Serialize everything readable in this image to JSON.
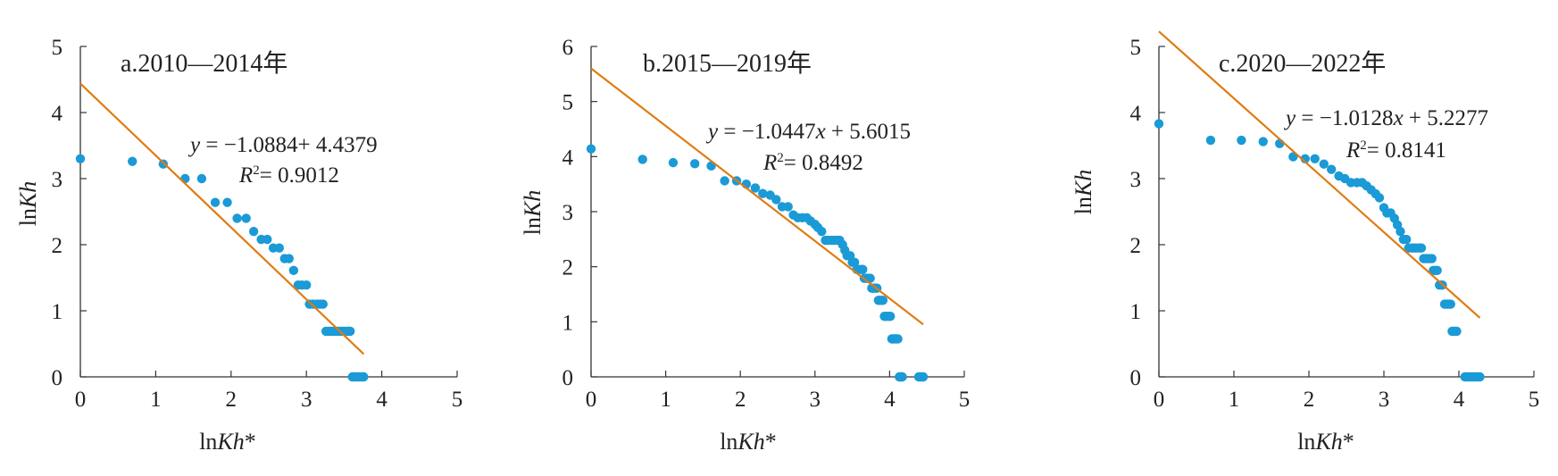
{
  "chart_data": [
    {
      "type": "scatter",
      "title": "a.2010—2014年",
      "xlabel": "lnKh*",
      "ylabel": "lnKh",
      "xlim": [
        0,
        5
      ],
      "ylim": [
        0,
        5
      ],
      "xticks": [
        "0",
        "1",
        "2",
        "3",
        "4",
        "5"
      ],
      "yticks": [
        "0",
        "1",
        "2",
        "3",
        "4",
        "5"
      ],
      "grid": false,
      "equation": "y = −1.0884+ 4.4379",
      "r2": "R2= 0.9012",
      "fit": {
        "slope": -1.0884,
        "intercept": 4.4379,
        "x_range": [
          0,
          3.76
        ]
      },
      "point_color": "#1a9ad6",
      "line_color": "#e07b12",
      "points": [
        [
          0,
          3.3
        ],
        [
          0.69,
          3.26
        ],
        [
          1.1,
          3.22
        ],
        [
          1.39,
          3.0
        ],
        [
          1.61,
          3.0
        ],
        [
          1.79,
          2.64
        ],
        [
          1.95,
          2.64
        ],
        [
          2.08,
          2.4
        ],
        [
          2.2,
          2.4
        ],
        [
          2.3,
          2.2
        ],
        [
          2.4,
          2.08
        ],
        [
          2.48,
          2.08
        ],
        [
          2.56,
          1.95
        ],
        [
          2.64,
          1.95
        ],
        [
          2.71,
          1.79
        ],
        [
          2.77,
          1.79
        ],
        [
          2.83,
          1.61
        ],
        [
          2.89,
          1.39
        ],
        [
          2.94,
          1.39
        ],
        [
          3.0,
          1.39
        ],
        [
          3.04,
          1.1
        ],
        [
          3.09,
          1.1
        ],
        [
          3.14,
          1.1
        ],
        [
          3.18,
          1.1
        ],
        [
          3.22,
          1.1
        ],
        [
          3.26,
          0.69
        ],
        [
          3.3,
          0.69
        ],
        [
          3.33,
          0.69
        ],
        [
          3.37,
          0.69
        ],
        [
          3.4,
          0.69
        ],
        [
          3.43,
          0.69
        ],
        [
          3.47,
          0.69
        ],
        [
          3.5,
          0.69
        ],
        [
          3.53,
          0.69
        ],
        [
          3.56,
          0.69
        ],
        [
          3.58,
          0.69
        ],
        [
          3.61,
          0.0
        ],
        [
          3.64,
          0.0
        ],
        [
          3.66,
          0.0
        ],
        [
          3.69,
          0.0
        ],
        [
          3.71,
          0.0
        ],
        [
          3.74,
          0.0
        ],
        [
          3.76,
          0.0
        ]
      ]
    },
    {
      "type": "scatter",
      "title": "b.2015—2019年",
      "xlabel": "lnKh*",
      "ylabel": "lnKh",
      "xlim": [
        0,
        5
      ],
      "ylim": [
        0,
        6
      ],
      "xticks": [
        "0",
        "1",
        "2",
        "3",
        "4",
        "5"
      ],
      "yticks": [
        "0",
        "1",
        "2",
        "3",
        "4",
        "5",
        "6"
      ],
      "grid": false,
      "equation": "y = −1.0447x + 5.6015",
      "r2": "R2= 0.8492",
      "fit": {
        "slope": -1.0447,
        "intercept": 5.6015,
        "x_range": [
          0,
          4.45
        ]
      },
      "point_color": "#1a9ad6",
      "line_color": "#e07b12",
      "points": [
        [
          0,
          4.14
        ],
        [
          0.69,
          3.95
        ],
        [
          1.1,
          3.89
        ],
        [
          1.39,
          3.87
        ],
        [
          1.61,
          3.83
        ],
        [
          1.79,
          3.56
        ],
        [
          1.95,
          3.56
        ],
        [
          2.08,
          3.5
        ],
        [
          2.2,
          3.43
        ],
        [
          2.3,
          3.33
        ],
        [
          2.4,
          3.3
        ],
        [
          2.48,
          3.22
        ],
        [
          2.56,
          3.09
        ],
        [
          2.64,
          3.09
        ],
        [
          2.71,
          2.94
        ],
        [
          2.77,
          2.89
        ],
        [
          2.83,
          2.89
        ],
        [
          2.89,
          2.89
        ],
        [
          2.94,
          2.83
        ],
        [
          3.0,
          2.77
        ],
        [
          3.04,
          2.71
        ],
        [
          3.09,
          2.64
        ],
        [
          3.14,
          2.48
        ],
        [
          3.18,
          2.48
        ],
        [
          3.22,
          2.48
        ],
        [
          3.26,
          2.48
        ],
        [
          3.3,
          2.48
        ],
        [
          3.33,
          2.48
        ],
        [
          3.37,
          2.4
        ],
        [
          3.4,
          2.3
        ],
        [
          3.43,
          2.2
        ],
        [
          3.47,
          2.2
        ],
        [
          3.5,
          2.08
        ],
        [
          3.53,
          2.08
        ],
        [
          3.56,
          1.95
        ],
        [
          3.58,
          1.95
        ],
        [
          3.61,
          1.95
        ],
        [
          3.64,
          1.95
        ],
        [
          3.66,
          1.79
        ],
        [
          3.69,
          1.79
        ],
        [
          3.71,
          1.79
        ],
        [
          3.74,
          1.79
        ],
        [
          3.76,
          1.61
        ],
        [
          3.78,
          1.61
        ],
        [
          3.81,
          1.61
        ],
        [
          3.83,
          1.61
        ],
        [
          3.85,
          1.39
        ],
        [
          3.87,
          1.39
        ],
        [
          3.89,
          1.39
        ],
        [
          3.91,
          1.39
        ],
        [
          3.93,
          1.1
        ],
        [
          3.95,
          1.1
        ],
        [
          3.97,
          1.1
        ],
        [
          3.99,
          1.1
        ],
        [
          4.01,
          1.1
        ],
        [
          4.03,
          0.69
        ],
        [
          4.04,
          0.69
        ],
        [
          4.06,
          0.69
        ],
        [
          4.08,
          0.69
        ],
        [
          4.09,
          0.69
        ],
        [
          4.11,
          0.69
        ],
        [
          4.13,
          0.0
        ],
        [
          4.14,
          0.0
        ],
        [
          4.16,
          0.0
        ],
        [
          4.17,
          0.0
        ],
        [
          4.39,
          0.0
        ],
        [
          4.41,
          0.0
        ],
        [
          4.43,
          0.0
        ],
        [
          4.45,
          0.0
        ]
      ]
    },
    {
      "type": "scatter",
      "title": "c.2020—2022年",
      "xlabel": "lnKh*",
      "ylabel": "lnKh",
      "xlim": [
        0,
        5
      ],
      "ylim": [
        0,
        5
      ],
      "xticks": [
        "0",
        "1",
        "2",
        "3",
        "4",
        "5"
      ],
      "yticks": [
        "0",
        "1",
        "2",
        "3",
        "4",
        "5"
      ],
      "grid": false,
      "equation": "y = −1.0128x + 5.2277",
      "r2": "R2= 0.8141",
      "fit": {
        "slope": -1.0128,
        "intercept": 5.2277,
        "x_range": [
          0,
          4.28
        ]
      },
      "point_color": "#1a9ad6",
      "line_color": "#e07b12",
      "points": [
        [
          0,
          3.83
        ],
        [
          0.69,
          3.58
        ],
        [
          1.1,
          3.58
        ],
        [
          1.39,
          3.56
        ],
        [
          1.61,
          3.53
        ],
        [
          1.79,
          3.33
        ],
        [
          1.95,
          3.3
        ],
        [
          2.08,
          3.3
        ],
        [
          2.2,
          3.22
        ],
        [
          2.3,
          3.14
        ],
        [
          2.4,
          3.04
        ],
        [
          2.48,
          3.0
        ],
        [
          2.56,
          2.94
        ],
        [
          2.64,
          2.94
        ],
        [
          2.71,
          2.94
        ],
        [
          2.77,
          2.89
        ],
        [
          2.83,
          2.83
        ],
        [
          2.89,
          2.77
        ],
        [
          2.94,
          2.71
        ],
        [
          3.0,
          2.56
        ],
        [
          3.04,
          2.48
        ],
        [
          3.09,
          2.48
        ],
        [
          3.14,
          2.4
        ],
        [
          3.18,
          2.3
        ],
        [
          3.22,
          2.2
        ],
        [
          3.26,
          2.08
        ],
        [
          3.3,
          2.08
        ],
        [
          3.33,
          1.95
        ],
        [
          3.37,
          1.95
        ],
        [
          3.4,
          1.95
        ],
        [
          3.43,
          1.95
        ],
        [
          3.47,
          1.95
        ],
        [
          3.5,
          1.95
        ],
        [
          3.53,
          1.79
        ],
        [
          3.56,
          1.79
        ],
        [
          3.58,
          1.79
        ],
        [
          3.61,
          1.79
        ],
        [
          3.64,
          1.79
        ],
        [
          3.66,
          1.61
        ],
        [
          3.69,
          1.61
        ],
        [
          3.71,
          1.61
        ],
        [
          3.74,
          1.39
        ],
        [
          3.76,
          1.39
        ],
        [
          3.78,
          1.39
        ],
        [
          3.81,
          1.1
        ],
        [
          3.83,
          1.1
        ],
        [
          3.85,
          1.1
        ],
        [
          3.87,
          1.1
        ],
        [
          3.89,
          1.1
        ],
        [
          3.91,
          0.69
        ],
        [
          3.93,
          0.69
        ],
        [
          3.95,
          0.69
        ],
        [
          3.97,
          0.69
        ],
        [
          4.08,
          0.0
        ],
        [
          4.11,
          0.0
        ],
        [
          4.14,
          0.0
        ],
        [
          4.17,
          0.0
        ],
        [
          4.2,
          0.0
        ],
        [
          4.23,
          0.0
        ],
        [
          4.26,
          0.0
        ],
        [
          4.28,
          0.0
        ]
      ]
    }
  ]
}
